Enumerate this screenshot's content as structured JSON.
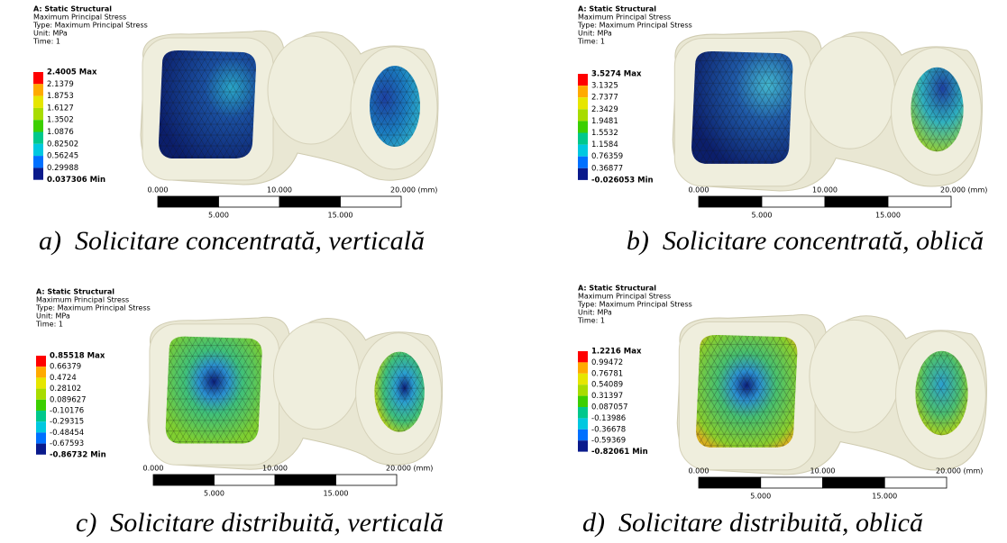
{
  "panels": [
    {
      "header": [
        "A: Static Structural",
        "Maximum Principal Stress",
        "Type: Maximum Principal Stress",
        "Unit: MPa",
        "Time: 1"
      ],
      "legend": [
        "2.4005 Max",
        "2.1379",
        "1.8753",
        "1.6127",
        "1.3502",
        "1.0876",
        "0.82502",
        "0.56245",
        "0.29988",
        "0.037306 Min"
      ],
      "scale_top": [
        "0.000",
        "10.000",
        "20.000 (mm)"
      ],
      "scale_bottom": [
        "5.000",
        "15.000"
      ],
      "caption": "a)  Solicitare concentrată, verticală"
    },
    {
      "header": [
        "A: Static Structural",
        "Maximum Principal Stress",
        "Type: Maximum Principal Stress",
        "Unit: MPa",
        "Time: 1"
      ],
      "legend": [
        "3.5274 Max",
        "3.1325",
        "2.7377",
        "2.3429",
        "1.9481",
        "1.5532",
        "1.1584",
        "0.76359",
        "0.36877",
        "-0.026053 Min"
      ],
      "scale_top": [
        "0.000",
        "10.000",
        "20.000 (mm)"
      ],
      "scale_bottom": [
        "5.000",
        "15.000"
      ],
      "caption": "b)  Solicitare concentrată, oblică"
    },
    {
      "header": [
        "A: Static Structural",
        "Maximum Principal Stress",
        "Type: Maximum Principal Stress",
        "Unit: MPa",
        "Time: 1"
      ],
      "legend": [
        "0.85518 Max",
        "0.66379",
        "0.4724",
        "0.28102",
        "0.089627",
        "-0.10176",
        "-0.29315",
        "-0.48454",
        "-0.67593",
        "-0.86732 Min"
      ],
      "scale_top": [
        "0.000",
        "10.000",
        "20.000 (mm)"
      ],
      "scale_bottom": [
        "5.000",
        "15.000"
      ],
      "caption": "c)  Solicitare distribuită, verticală"
    },
    {
      "header": [
        "A: Static Structural",
        "Maximum Principal Stress",
        "Type: Maximum Principal Stress",
        "Unit: MPa",
        "Time: 1"
      ],
      "legend": [
        "1.2216 Max",
        "0.99472",
        "0.76781",
        "0.54089",
        "0.31397",
        "0.087057",
        "-0.13986",
        "-0.36678",
        "-0.59369",
        "-0.82061 Min"
      ],
      "scale_top": [
        "0.000",
        "10.000",
        "20.000 (mm)"
      ],
      "scale_bottom": [
        "5.000",
        "15.000"
      ],
      "caption": "d)  Solicitare distribuită, oblică"
    }
  ]
}
